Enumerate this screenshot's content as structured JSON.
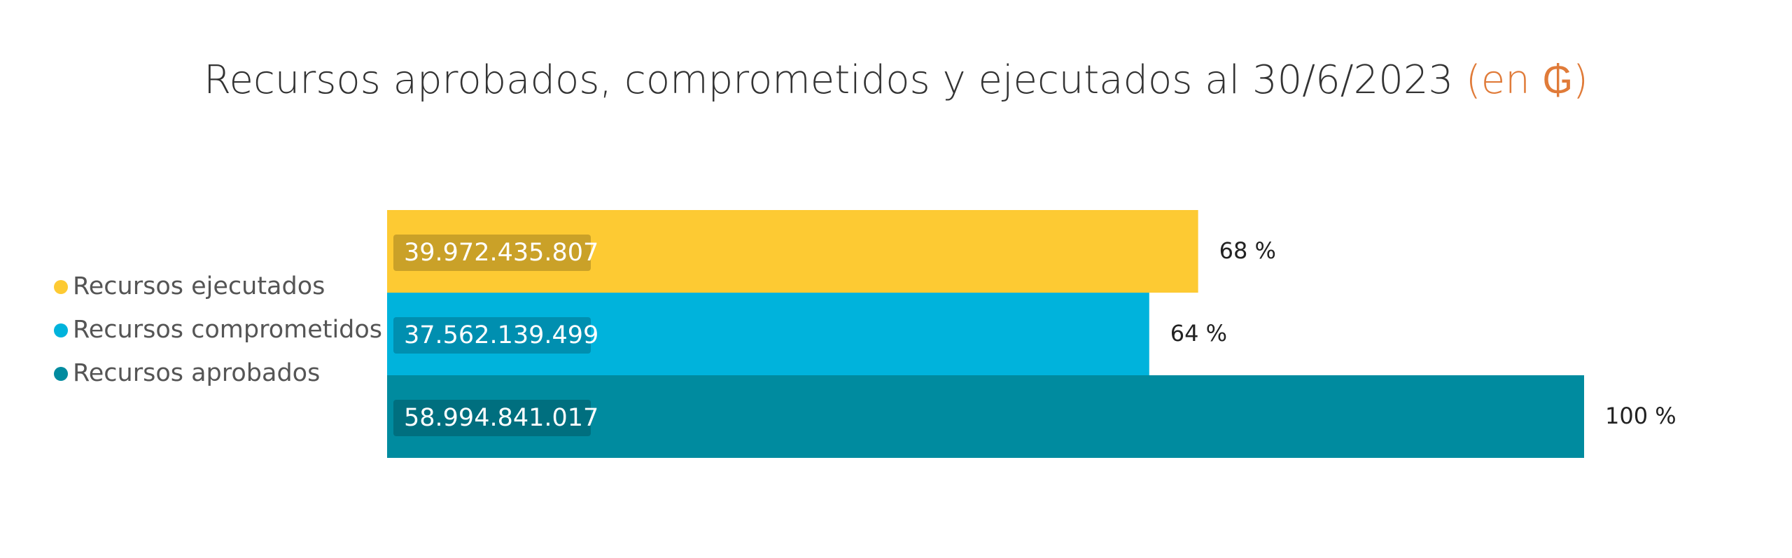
{
  "chart_data": {
    "type": "bar",
    "orientation": "horizontal",
    "title": "Recursos aprobados, comprometidos y ejecutados al 30/6/2023",
    "title_unit": "(en ₲)",
    "series": [
      {
        "name": "Recursos ejecutados",
        "color": "#FDCA33",
        "values": [
          39972435807
        ],
        "value_labels": [
          "39.972.435.807"
        ],
        "percent_values": [
          68
        ],
        "percent_labels": [
          "68 %"
        ]
      },
      {
        "name": "Recursos comprometidos",
        "color": "#00B3DC",
        "values": [
          37562139499
        ],
        "value_labels": [
          "37.562.139.499"
        ],
        "percent_values": [
          64
        ],
        "percent_labels": [
          "64 %"
        ]
      },
      {
        "name": "Recursos aprobados",
        "color": "#008B9F",
        "values": [
          58994841017
        ],
        "value_labels": [
          "58.994.841.017"
        ],
        "percent_values": [
          100
        ],
        "percent_labels": [
          "100 %"
        ]
      }
    ],
    "legend": "left"
  }
}
